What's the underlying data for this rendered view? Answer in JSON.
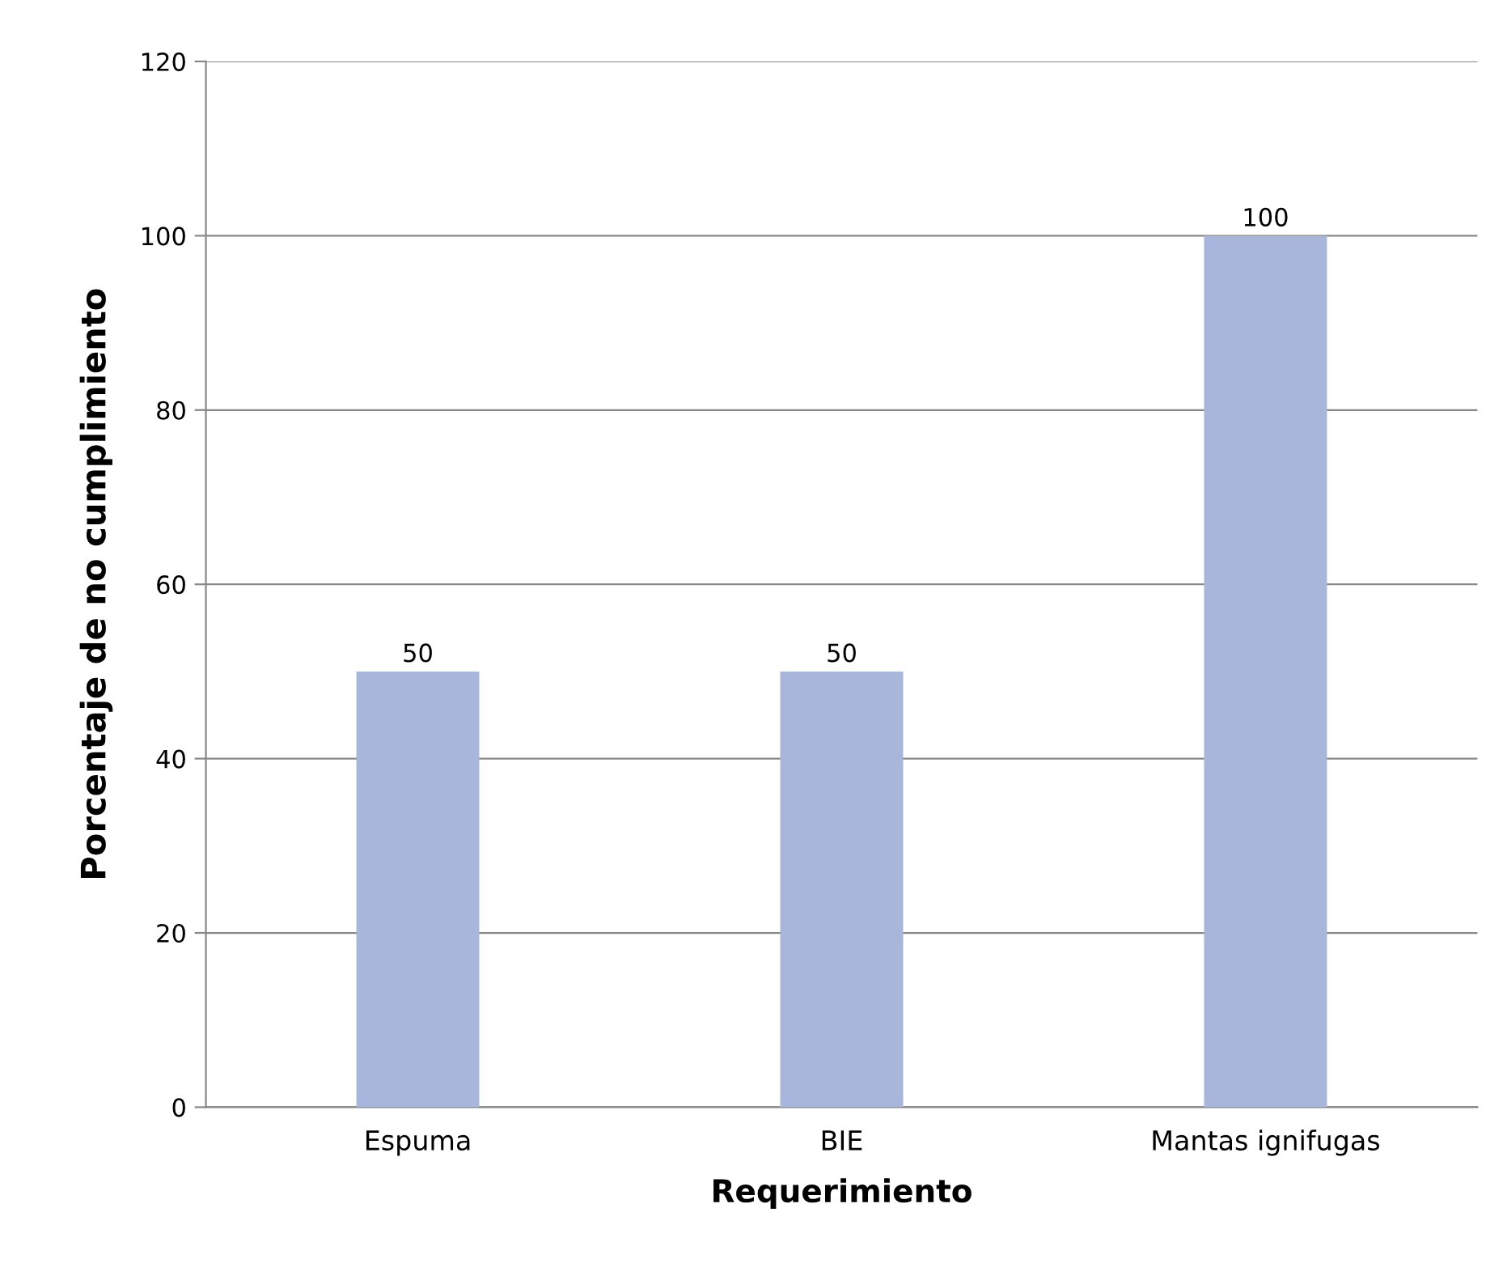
{
  "chart_data": {
    "type": "bar",
    "xlabel": "Requerimiento",
    "ylabel": "Porcentaje de no cumplimiento",
    "categories": [
      "Espuma",
      "BIE",
      "Mantas ignifugas"
    ],
    "values": [
      50,
      50,
      100
    ],
    "color": "#a8b6db",
    "ylim": [
      0,
      120
    ],
    "yticks": [
      0,
      20,
      40,
      60,
      80,
      100,
      120
    ],
    "grid": "y",
    "data_labels": true
  }
}
